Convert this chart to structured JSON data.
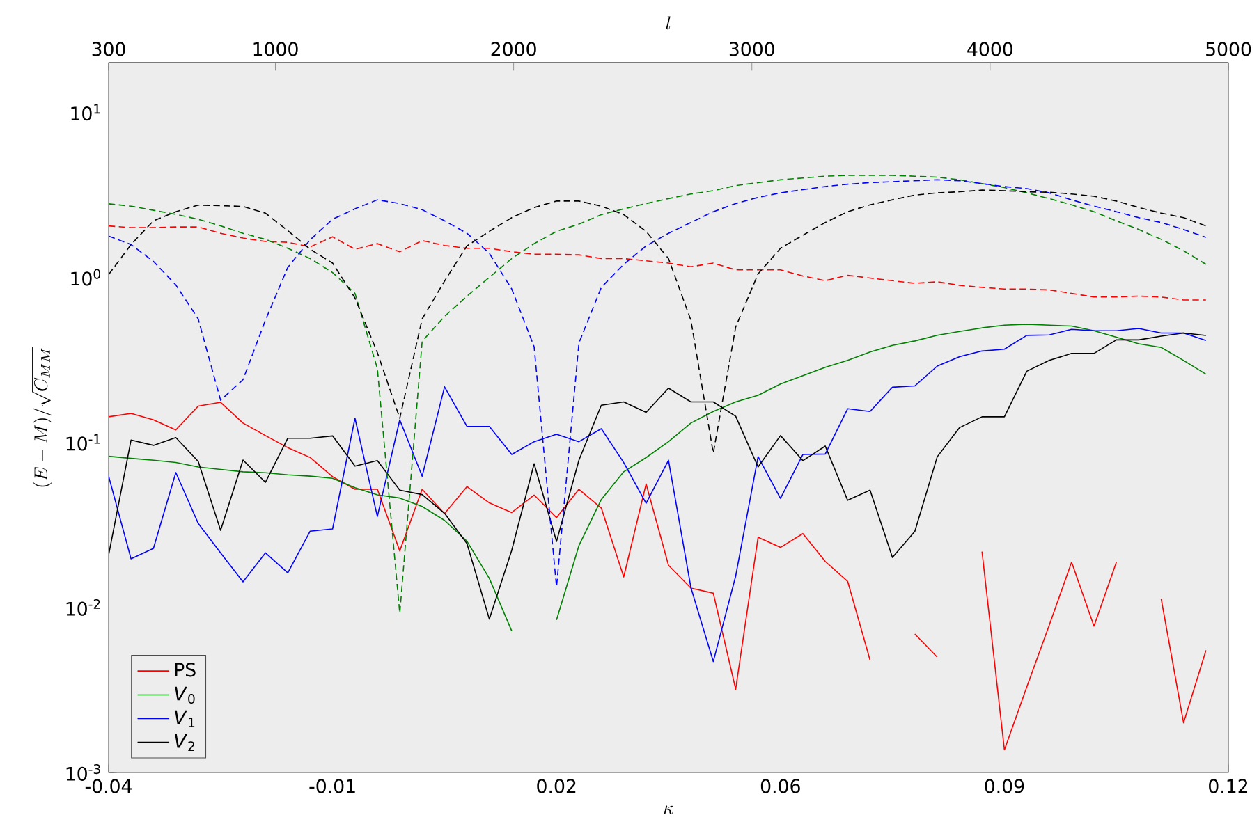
{
  "chart_data": {
    "type": "line",
    "xlabel": "\\kappa",
    "x2label": "l",
    "ylabel": "(E-M)/\\sqrt{C_{MM}}",
    "x": [
      -0.04,
      -0.0368,
      -0.0336,
      -0.0304,
      -0.0272,
      -0.024,
      -0.0208,
      -0.0176,
      -0.0144,
      -0.0112,
      -0.008,
      -0.0048,
      -0.0016,
      0.0016,
      0.0048,
      0.008,
      0.0112,
      0.0144,
      0.0176,
      0.0208,
      0.024,
      0.0272,
      0.0304,
      0.0336,
      0.0368,
      0.04,
      0.0432,
      0.0464,
      0.0496,
      0.0528,
      0.056,
      0.0592,
      0.0624,
      0.0656,
      0.0688,
      0.072,
      0.0752,
      0.0784,
      0.0816,
      0.0848,
      0.088,
      0.0912,
      0.0944,
      0.0976,
      0.1008,
      0.104,
      0.1072,
      0.1104,
      0.1136,
      0.1168
    ],
    "xlim": [
      -0.04,
      0.12
    ],
    "xticks": [
      -0.04,
      {
        "value": -0.008,
        "label": "-0.01"
      },
      {
        "value": 0.024,
        "label": "0.02"
      },
      {
        "value": 0.056,
        "label": "0.06"
      },
      {
        "value": 0.088,
        "label": "0.09"
      },
      0.12
    ],
    "x2lim": [
      300,
      5000
    ],
    "x2ticks": [
      300,
      1000,
      2000,
      3000,
      4000,
      5000
    ],
    "ylim": [
      0.001,
      20
    ],
    "yticks": [
      {
        "value": 0.001,
        "label": "10$^{-3}$"
      },
      {
        "value": 0.01,
        "label": "10$^{-2}$"
      },
      {
        "value": 0.1,
        "label": "10$^{-1}$"
      },
      {
        "value": 1,
        "label": "10$^{0}$"
      },
      {
        "value": 10,
        "label": "10$^{1}$"
      }
    ],
    "log": true,
    "grid": false,
    "legend": "bottom left",
    "series": [
      {
        "name": "PS",
        "color": "#ff0000",
        "line_style": "solid",
        "values": [
          0.143,
          0.15,
          0.137,
          0.119,
          0.166,
          0.175,
          0.131,
          0.11,
          0.093,
          0.081,
          0.062,
          0.052,
          0.052,
          0.022,
          0.052,
          0.037,
          0.054,
          0.043,
          0.0376,
          0.048,
          0.035,
          0.052,
          0.04,
          0.0153,
          0.056,
          0.018,
          0.0131,
          0.0122,
          0.0032,
          0.0266,
          0.0231,
          0.028,
          0.019,
          0.0144,
          0.0048,
          null,
          0.0069,
          0.005,
          null,
          0.0218,
          0.00137,
          0.0033,
          0.0078,
          0.0188,
          0.0077,
          0.0188,
          null,
          0.0113,
          0.002,
          0.0055
        ]
      },
      {
        "name": "*V*$_{0}$",
        "color": "#008000",
        "line_style": "solid",
        "values": [
          0.0824,
          0.08,
          0.078,
          0.0756,
          0.071,
          0.0686,
          0.0664,
          0.0655,
          0.0636,
          0.0625,
          0.0606,
          0.0532,
          0.0481,
          0.046,
          0.0409,
          0.0337,
          0.0252,
          0.015,
          0.0072,
          null,
          0.0084,
          0.0237,
          0.0451,
          0.0664,
          0.0809,
          0.101,
          0.131,
          0.154,
          0.176,
          0.193,
          0.226,
          0.254,
          0.285,
          0.314,
          0.353,
          0.387,
          0.412,
          0.446,
          0.47,
          0.494,
          0.513,
          0.52,
          0.513,
          0.507,
          0.475,
          0.434,
          0.396,
          0.376,
          0.314,
          0.259
        ]
      },
      {
        "name": "*V*$_{1}$",
        "color": "#0000ff",
        "line_style": "solid",
        "values": [
          0.0624,
          0.0197,
          0.0228,
          0.0657,
          0.0323,
          0.0214,
          0.0143,
          0.0214,
          0.0162,
          0.029,
          0.0299,
          0.14,
          0.0356,
          0.137,
          0.0624,
          0.217,
          0.125,
          0.125,
          0.0845,
          0.101,
          0.112,
          0.101,
          0.121,
          0.0755,
          0.0428,
          0.078,
          0.0132,
          0.0047,
          0.0155,
          0.082,
          0.0458,
          0.0845,
          0.085,
          0.16,
          0.154,
          0.216,
          0.22,
          0.29,
          0.331,
          0.358,
          0.367,
          0.445,
          0.448,
          0.484,
          0.475,
          0.475,
          0.49,
          0.46,
          0.46,
          0.414
        ]
      },
      {
        "name": "*V*$_{2}$",
        "color": "#000000",
        "line_style": "solid",
        "values": [
          0.0208,
          0.1033,
          0.096,
          0.107,
          0.0767,
          0.0293,
          0.0782,
          0.0573,
          0.106,
          0.106,
          0.1095,
          0.0719,
          0.0776,
          0.0514,
          0.0483,
          0.0372,
          0.0244,
          0.0085,
          0.0222,
          0.0743,
          0.0251,
          0.078,
          0.168,
          0.176,
          0.152,
          0.213,
          0.176,
          0.176,
          0.144,
          0.071,
          0.11,
          0.0776,
          0.095,
          0.0446,
          0.0514,
          0.0201,
          0.0289,
          0.0818,
          0.123,
          0.143,
          0.143,
          0.27,
          0.314,
          0.346,
          0.346,
          0.418,
          0.418,
          0.44,
          0.46,
          0.445
        ]
      },
      {
        "color": "#ff0000",
        "line_style": "dashed",
        "values": [
          2.05,
          2.0,
          2.0,
          2.02,
          2.02,
          1.85,
          1.73,
          1.65,
          1.63,
          1.53,
          1.76,
          1.48,
          1.6,
          1.43,
          1.67,
          1.56,
          1.5,
          1.5,
          1.43,
          1.38,
          1.38,
          1.37,
          1.3,
          1.3,
          1.26,
          1.22,
          1.16,
          1.22,
          1.11,
          1.11,
          1.11,
          1.02,
          0.955,
          1.03,
          0.99,
          0.955,
          0.92,
          0.94,
          0.895,
          0.87,
          0.85,
          0.85,
          0.84,
          0.8,
          0.76,
          0.76,
          0.77,
          0.76,
          0.73,
          0.73
        ]
      },
      {
        "color": "#008000",
        "line_style": "dashed",
        "values": [
          2.79,
          2.7,
          2.55,
          2.41,
          2.25,
          2.05,
          1.85,
          1.7,
          1.5,
          1.3,
          1.07,
          0.8,
          0.28,
          0.0092,
          0.41,
          0.58,
          0.77,
          1.0,
          1.3,
          1.6,
          1.9,
          2.1,
          2.4,
          2.6,
          2.8,
          3.0,
          3.2,
          3.35,
          3.6,
          3.75,
          3.9,
          4.0,
          4.1,
          4.15,
          4.15,
          4.15,
          4.1,
          4.05,
          3.9,
          3.7,
          3.5,
          3.25,
          3.0,
          2.75,
          2.5,
          2.2,
          1.95,
          1.7,
          1.45,
          1.2
        ]
      },
      {
        "color": "#0000ff",
        "line_style": "dashed",
        "values": [
          1.78,
          1.58,
          1.25,
          0.9,
          0.56,
          0.18,
          0.24,
          0.55,
          1.15,
          1.69,
          2.25,
          2.6,
          2.95,
          2.8,
          2.57,
          2.2,
          1.85,
          1.4,
          0.85,
          0.38,
          0.0133,
          0.4,
          0.87,
          1.2,
          1.55,
          1.85,
          2.15,
          2.5,
          2.8,
          3.05,
          3.25,
          3.4,
          3.55,
          3.67,
          3.75,
          3.8,
          3.85,
          3.9,
          3.85,
          3.7,
          3.55,
          3.45,
          3.25,
          2.95,
          2.7,
          2.5,
          2.3,
          2.15,
          1.95,
          1.75
        ]
      },
      {
        "color": "#000000",
        "line_style": "dashed",
        "values": [
          1.04,
          1.58,
          2.2,
          2.5,
          2.74,
          2.72,
          2.69,
          2.45,
          1.92,
          1.48,
          1.22,
          0.75,
          0.35,
          0.14,
          0.56,
          0.95,
          1.55,
          1.9,
          2.3,
          2.65,
          2.9,
          2.9,
          2.7,
          2.4,
          1.9,
          1.3,
          0.55,
          0.086,
          0.5,
          1.05,
          1.5,
          1.8,
          2.15,
          2.5,
          2.75,
          2.95,
          3.15,
          3.25,
          3.3,
          3.38,
          3.35,
          3.3,
          3.28,
          3.2,
          3.1,
          2.9,
          2.65,
          2.45,
          2.3,
          2.05
        ]
      }
    ]
  }
}
